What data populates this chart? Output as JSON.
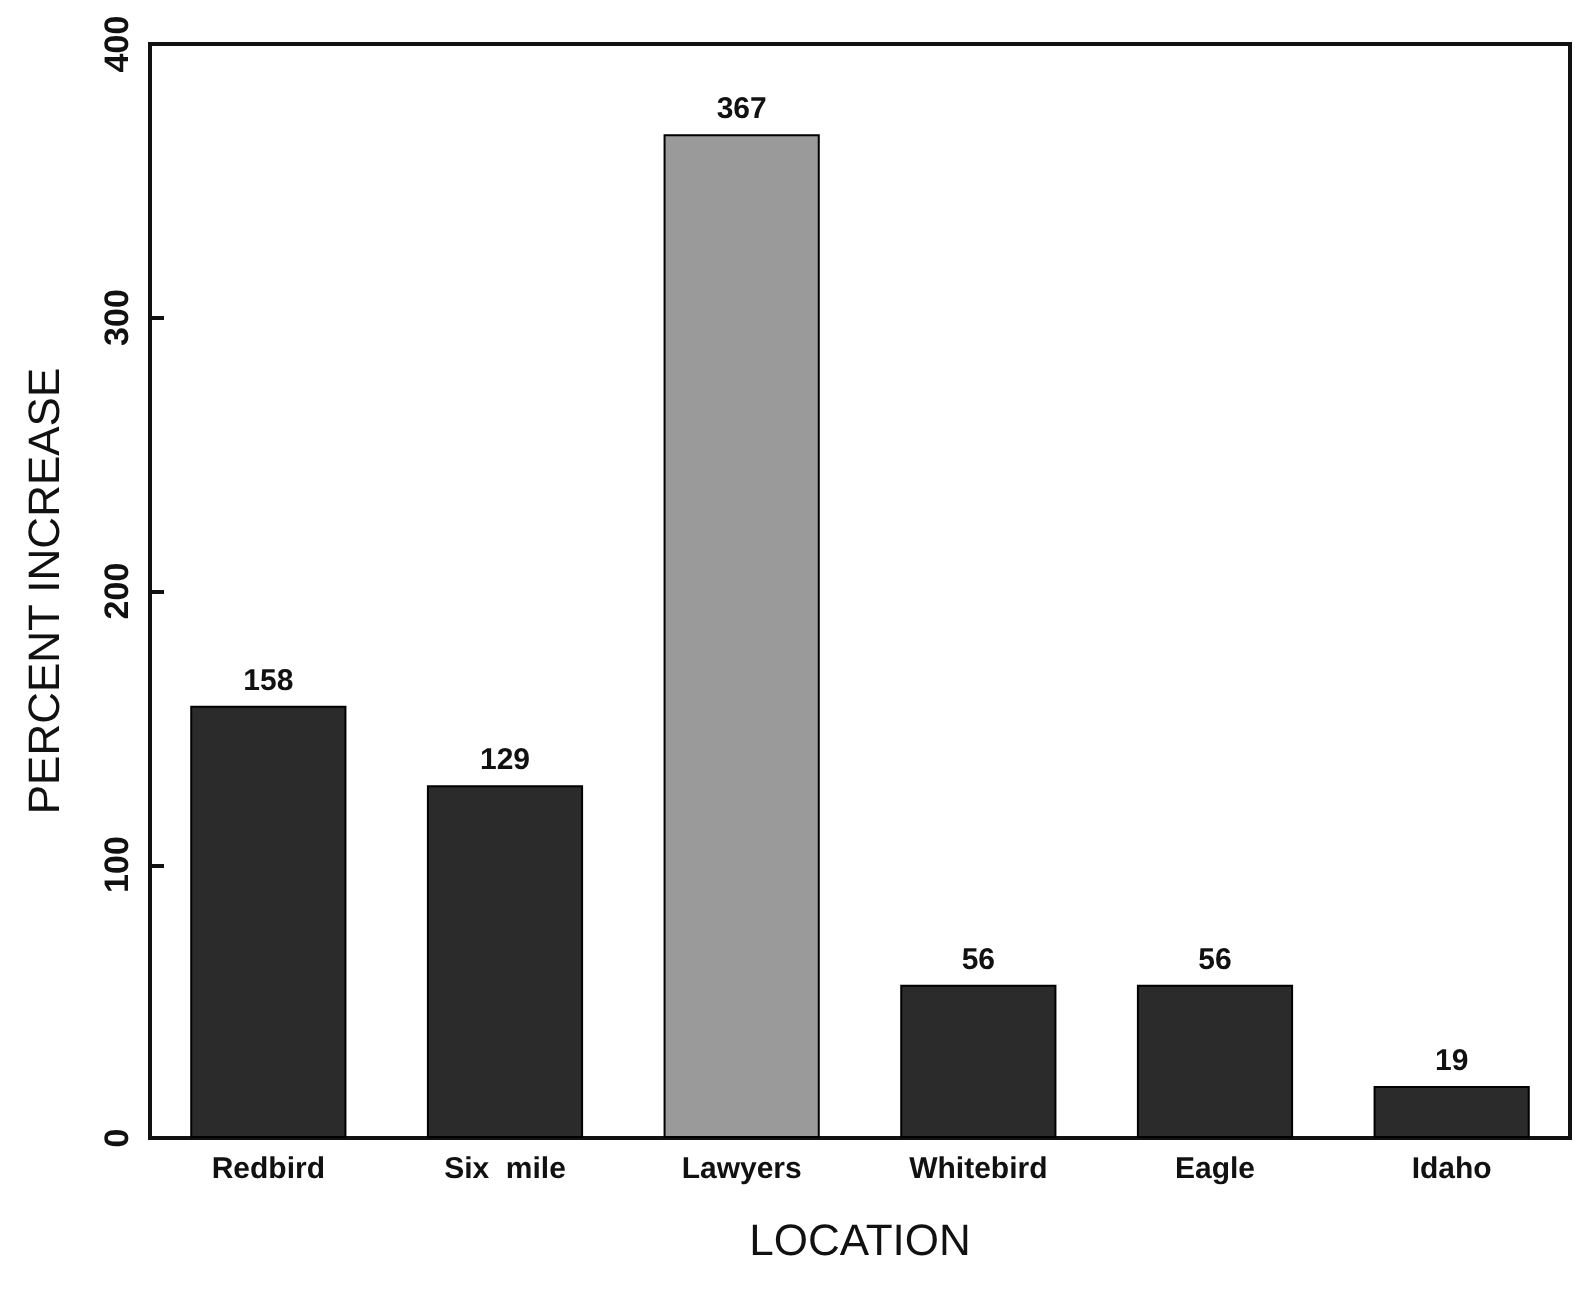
{
  "chart_data": {
    "type": "bar",
    "xlabel": "LOCATION",
    "ylabel": "PERCENT INCREASE",
    "categories": [
      "Redbird",
      "Six  mile",
      "Lawyers",
      "Whitebird",
      "Eagle",
      "Idaho"
    ],
    "values": [
      158,
      129,
      367,
      56,
      56,
      19
    ],
    "colors": [
      "#2b2b2b",
      "#2b2b2b",
      "#9a9a9a",
      "#2b2b2b",
      "#2b2b2b",
      "#2b2b2b"
    ],
    "ylim": [
      0,
      400
    ],
    "yticks": [
      0,
      100,
      200,
      300,
      400
    ],
    "grid": false,
    "data_labels": true
  }
}
